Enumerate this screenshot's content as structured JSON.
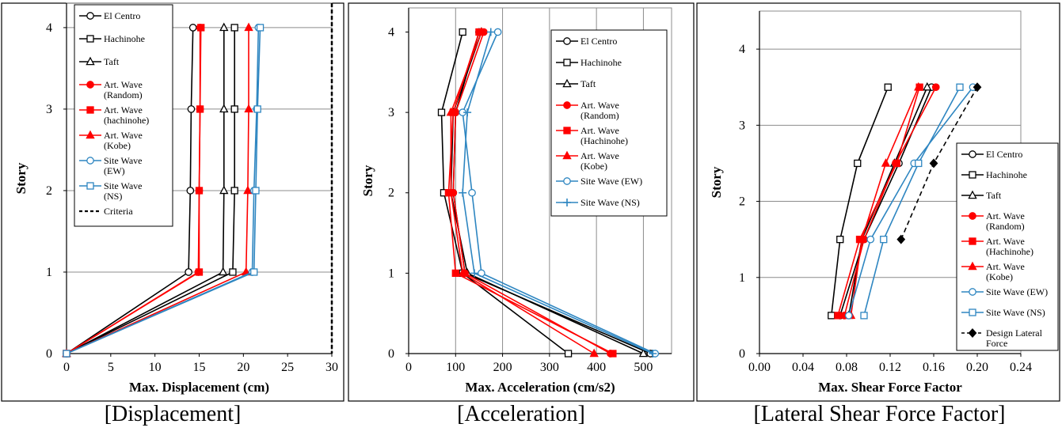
{
  "panels": [
    {
      "caption": "[Displacement]",
      "chart_data": {
        "type": "line",
        "xlabel": "Max. Displacement (cm)",
        "ylabel": "Story",
        "xlim": [
          0,
          30
        ],
        "ylim": [
          0,
          4.3
        ],
        "xticks": [
          0,
          5,
          10,
          15,
          20,
          25,
          30
        ],
        "xtick_labels": [
          "0",
          "5",
          "10",
          "15",
          "20",
          "25",
          "30"
        ],
        "yticks": [
          0,
          1,
          2,
          3,
          4
        ],
        "ytick_labels": [
          "0",
          "1",
          "2",
          "3",
          "4"
        ],
        "grid": "horizontal",
        "legend_position": "top-left",
        "reference_line": {
          "name": "Criteria",
          "x": 30,
          "style": "dashed"
        },
        "series": [
          {
            "name": "El Centro",
            "color": "#000000",
            "marker": "circle",
            "x": [
              0,
              13.8,
              14.0,
              14.1,
              14.3
            ],
            "y": [
              0,
              1,
              2,
              3,
              4
            ]
          },
          {
            "name": "Hachinohe",
            "color": "#000000",
            "marker": "square",
            "x": [
              0,
              18.8,
              19.0,
              19.0,
              19.0
            ],
            "y": [
              0,
              1,
              2,
              3,
              4
            ]
          },
          {
            "name": "Taft",
            "color": "#000000",
            "marker": "triangle",
            "x": [
              0,
              17.7,
              17.8,
              17.8,
              17.8
            ],
            "y": [
              0,
              1,
              2,
              3,
              4
            ]
          },
          {
            "name": "Art. Wave (Random)",
            "color": "#ff0000",
            "marker": "circle-filled",
            "x": [
              0,
              14.9,
              15.0,
              15.1,
              15.1
            ],
            "y": [
              0,
              1,
              2,
              3,
              4
            ]
          },
          {
            "name": "Art. Wave (hachinohe)",
            "color": "#ff0000",
            "marker": "square-filled",
            "x": [
              0,
              15.0,
              15.0,
              15.1,
              15.2
            ],
            "y": [
              0,
              1,
              2,
              3,
              4
            ]
          },
          {
            "name": "Art. Wave (Kobe)",
            "color": "#ff0000",
            "marker": "triangle-filled",
            "x": [
              0,
              20.3,
              20.5,
              20.6,
              20.6
            ],
            "y": [
              0,
              1,
              2,
              3,
              4
            ]
          },
          {
            "name": "Site Wave (EW)",
            "color": "#2e86c1",
            "marker": "circle",
            "x": [
              0,
              21.0,
              21.2,
              21.5,
              21.7
            ],
            "y": [
              0,
              1,
              2,
              3,
              4
            ]
          },
          {
            "name": "Site Wave (NS)",
            "color": "#2e86c1",
            "marker": "square",
            "x": [
              0,
              21.2,
              21.4,
              21.6,
              21.9
            ],
            "y": [
              0,
              1,
              2,
              3,
              4
            ]
          }
        ],
        "legend": [
          "El Centro",
          "Hachinohe",
          "Taft",
          "Art. Wave (Random)",
          "Art. Wave (hachinohe)",
          "Art. Wave (Kobe)",
          "Site Wave (EW)",
          "Site Wave (NS)",
          "Criteria"
        ]
      }
    },
    {
      "caption": "[Acceleration]",
      "chart_data": {
        "type": "line",
        "xlabel": "Max. Acceleration (cm/s2)",
        "ylabel": "Story",
        "xlim": [
          0,
          560
        ],
        "ylim": [
          0,
          4.3
        ],
        "xticks": [
          0,
          100,
          200,
          300,
          400,
          500
        ],
        "xtick_labels": [
          "0",
          "100",
          "200",
          "300",
          "400",
          "500"
        ],
        "yticks": [
          0,
          1,
          2,
          3,
          4
        ],
        "ytick_labels": [
          "0",
          "1",
          "2",
          "3",
          "4"
        ],
        "grid": "vertical",
        "legend_position": "top-right",
        "series": [
          {
            "name": "El Centro",
            "color": "#000000",
            "marker": "circle",
            "x": [
              515,
              120,
              95,
              100,
              150
            ],
            "y": [
              0,
              1,
              2,
              3,
              4
            ]
          },
          {
            "name": "Hachinohe",
            "color": "#000000",
            "marker": "square",
            "x": [
              340,
              115,
              75,
              70,
              115
            ],
            "y": [
              0,
              1,
              2,
              3,
              4
            ]
          },
          {
            "name": "Taft",
            "color": "#000000",
            "marker": "triangle",
            "x": [
              500,
              125,
              90,
              95,
              155
            ],
            "y": [
              0,
              1,
              2,
              3,
              4
            ]
          },
          {
            "name": "Art. Wave (Random)",
            "color": "#ff0000",
            "marker": "circle-filled",
            "x": [
              430,
              120,
              95,
              100,
              160
            ],
            "y": [
              0,
              1,
              2,
              3,
              4
            ]
          },
          {
            "name": "Art. Wave (Hachinohe)",
            "color": "#ff0000",
            "marker": "square-filled",
            "x": [
              435,
              100,
              85,
              95,
              150
            ],
            "y": [
              0,
              1,
              2,
              3,
              4
            ]
          },
          {
            "name": "Art. Wave (Kobe)",
            "color": "#ff0000",
            "marker": "triangle-filled",
            "x": [
              395,
              115,
              90,
              90,
              155
            ],
            "y": [
              0,
              1,
              2,
              3,
              4
            ]
          },
          {
            "name": "Site Wave (EW)",
            "color": "#2e86c1",
            "marker": "circle",
            "x": [
              525,
              155,
              135,
              115,
              190
            ],
            "y": [
              0,
              1,
              2,
              3,
              4
            ]
          },
          {
            "name": "Site Wave (NS)",
            "color": "#2e86c1",
            "marker": "plus",
            "x": [
              520,
              140,
              115,
              125,
              175
            ],
            "y": [
              0,
              1,
              2,
              3,
              4
            ]
          }
        ],
        "legend": [
          "El Centro",
          "Hachinohe",
          "Taft",
          "Art. Wave (Random)",
          "Art. Wave (Hachinohe)",
          "Art. Wave (Kobe)",
          "Site Wave (EW)",
          "Site Wave (NS)"
        ]
      }
    },
    {
      "caption": "[Lateral Shear Force Factor]",
      "chart_data": {
        "type": "line",
        "xlabel": "Max. Shear Force Factor",
        "ylabel": "Story",
        "xlim": [
          0,
          0.24
        ],
        "ylim": [
          0,
          4.5
        ],
        "xticks": [
          0,
          0.04,
          0.08,
          0.12,
          0.16,
          0.2,
          0.24
        ],
        "xtick_labels": [
          "0.00",
          "0.04",
          "0.08",
          "0.12",
          "0.16",
          "0.20",
          "0.24"
        ],
        "yticks": [
          0,
          1,
          2,
          3,
          4
        ],
        "ytick_labels": [
          "0",
          "1",
          "2",
          "3",
          "4"
        ],
        "grid": "horizontal",
        "legend_position": "right",
        "series": [
          {
            "name": "El Centro",
            "color": "#000000",
            "marker": "circle",
            "x": [
              0.074,
              0.096,
              0.128,
              0.158
            ],
            "y": [
              0.5,
              1.5,
              2.5,
              3.5
            ]
          },
          {
            "name": "Hachinohe",
            "color": "#000000",
            "marker": "square",
            "x": [
              0.066,
              0.074,
              0.09,
              0.118
            ],
            "y": [
              0.5,
              1.5,
              2.5,
              3.5
            ]
          },
          {
            "name": "Taft",
            "color": "#000000",
            "marker": "triangle",
            "x": [
              0.082,
              0.094,
              0.124,
              0.154
            ],
            "y": [
              0.5,
              1.5,
              2.5,
              3.5
            ]
          },
          {
            "name": "Art. Wave (Random)",
            "color": "#ff0000",
            "marker": "circle-filled",
            "x": [
              0.078,
              0.096,
              0.125,
              0.162
            ],
            "y": [
              0.5,
              1.5,
              2.5,
              3.5
            ]
          },
          {
            "name": "Art. Wave (Hachinohe)",
            "color": "#ff0000",
            "marker": "square-filled",
            "x": [
              0.072,
              0.092,
              0.126,
              0.147
            ],
            "y": [
              0.5,
              1.5,
              2.5,
              3.5
            ]
          },
          {
            "name": "Art. Wave (Kobe)",
            "color": "#ff0000",
            "marker": "triangle-filled",
            "x": [
              0.084,
              0.094,
              0.116,
              0.146
            ],
            "y": [
              0.5,
              1.5,
              2.5,
              3.5
            ]
          },
          {
            "name": "Site Wave (EW)",
            "color": "#2e86c1",
            "marker": "circle",
            "x": [
              0.082,
              0.102,
              0.142,
              0.196
            ],
            "y": [
              0.5,
              1.5,
              2.5,
              3.5
            ]
          },
          {
            "name": "Site Wave (NS)",
            "color": "#2e86c1",
            "marker": "square",
            "x": [
              0.096,
              0.114,
              0.146,
              0.184
            ],
            "y": [
              0.5,
              1.5,
              2.5,
              3.5
            ]
          },
          {
            "name": "Design Lateral Force",
            "color": "#000000",
            "marker": "diamond-filled",
            "dashed": true,
            "x": [
              0.13,
              0.16,
              0.2
            ],
            "y": [
              1.5,
              2.5,
              3.5
            ]
          }
        ],
        "legend": [
          "El Centro",
          "Hachinohe",
          "Taft",
          "Art. Wave (Random)",
          "Art. Wave (Hachinohe)",
          "Art. Wave (Kobe)",
          "Site Wave (EW)",
          "Site Wave (NS)",
          "Design Lateral Force"
        ]
      }
    }
  ]
}
